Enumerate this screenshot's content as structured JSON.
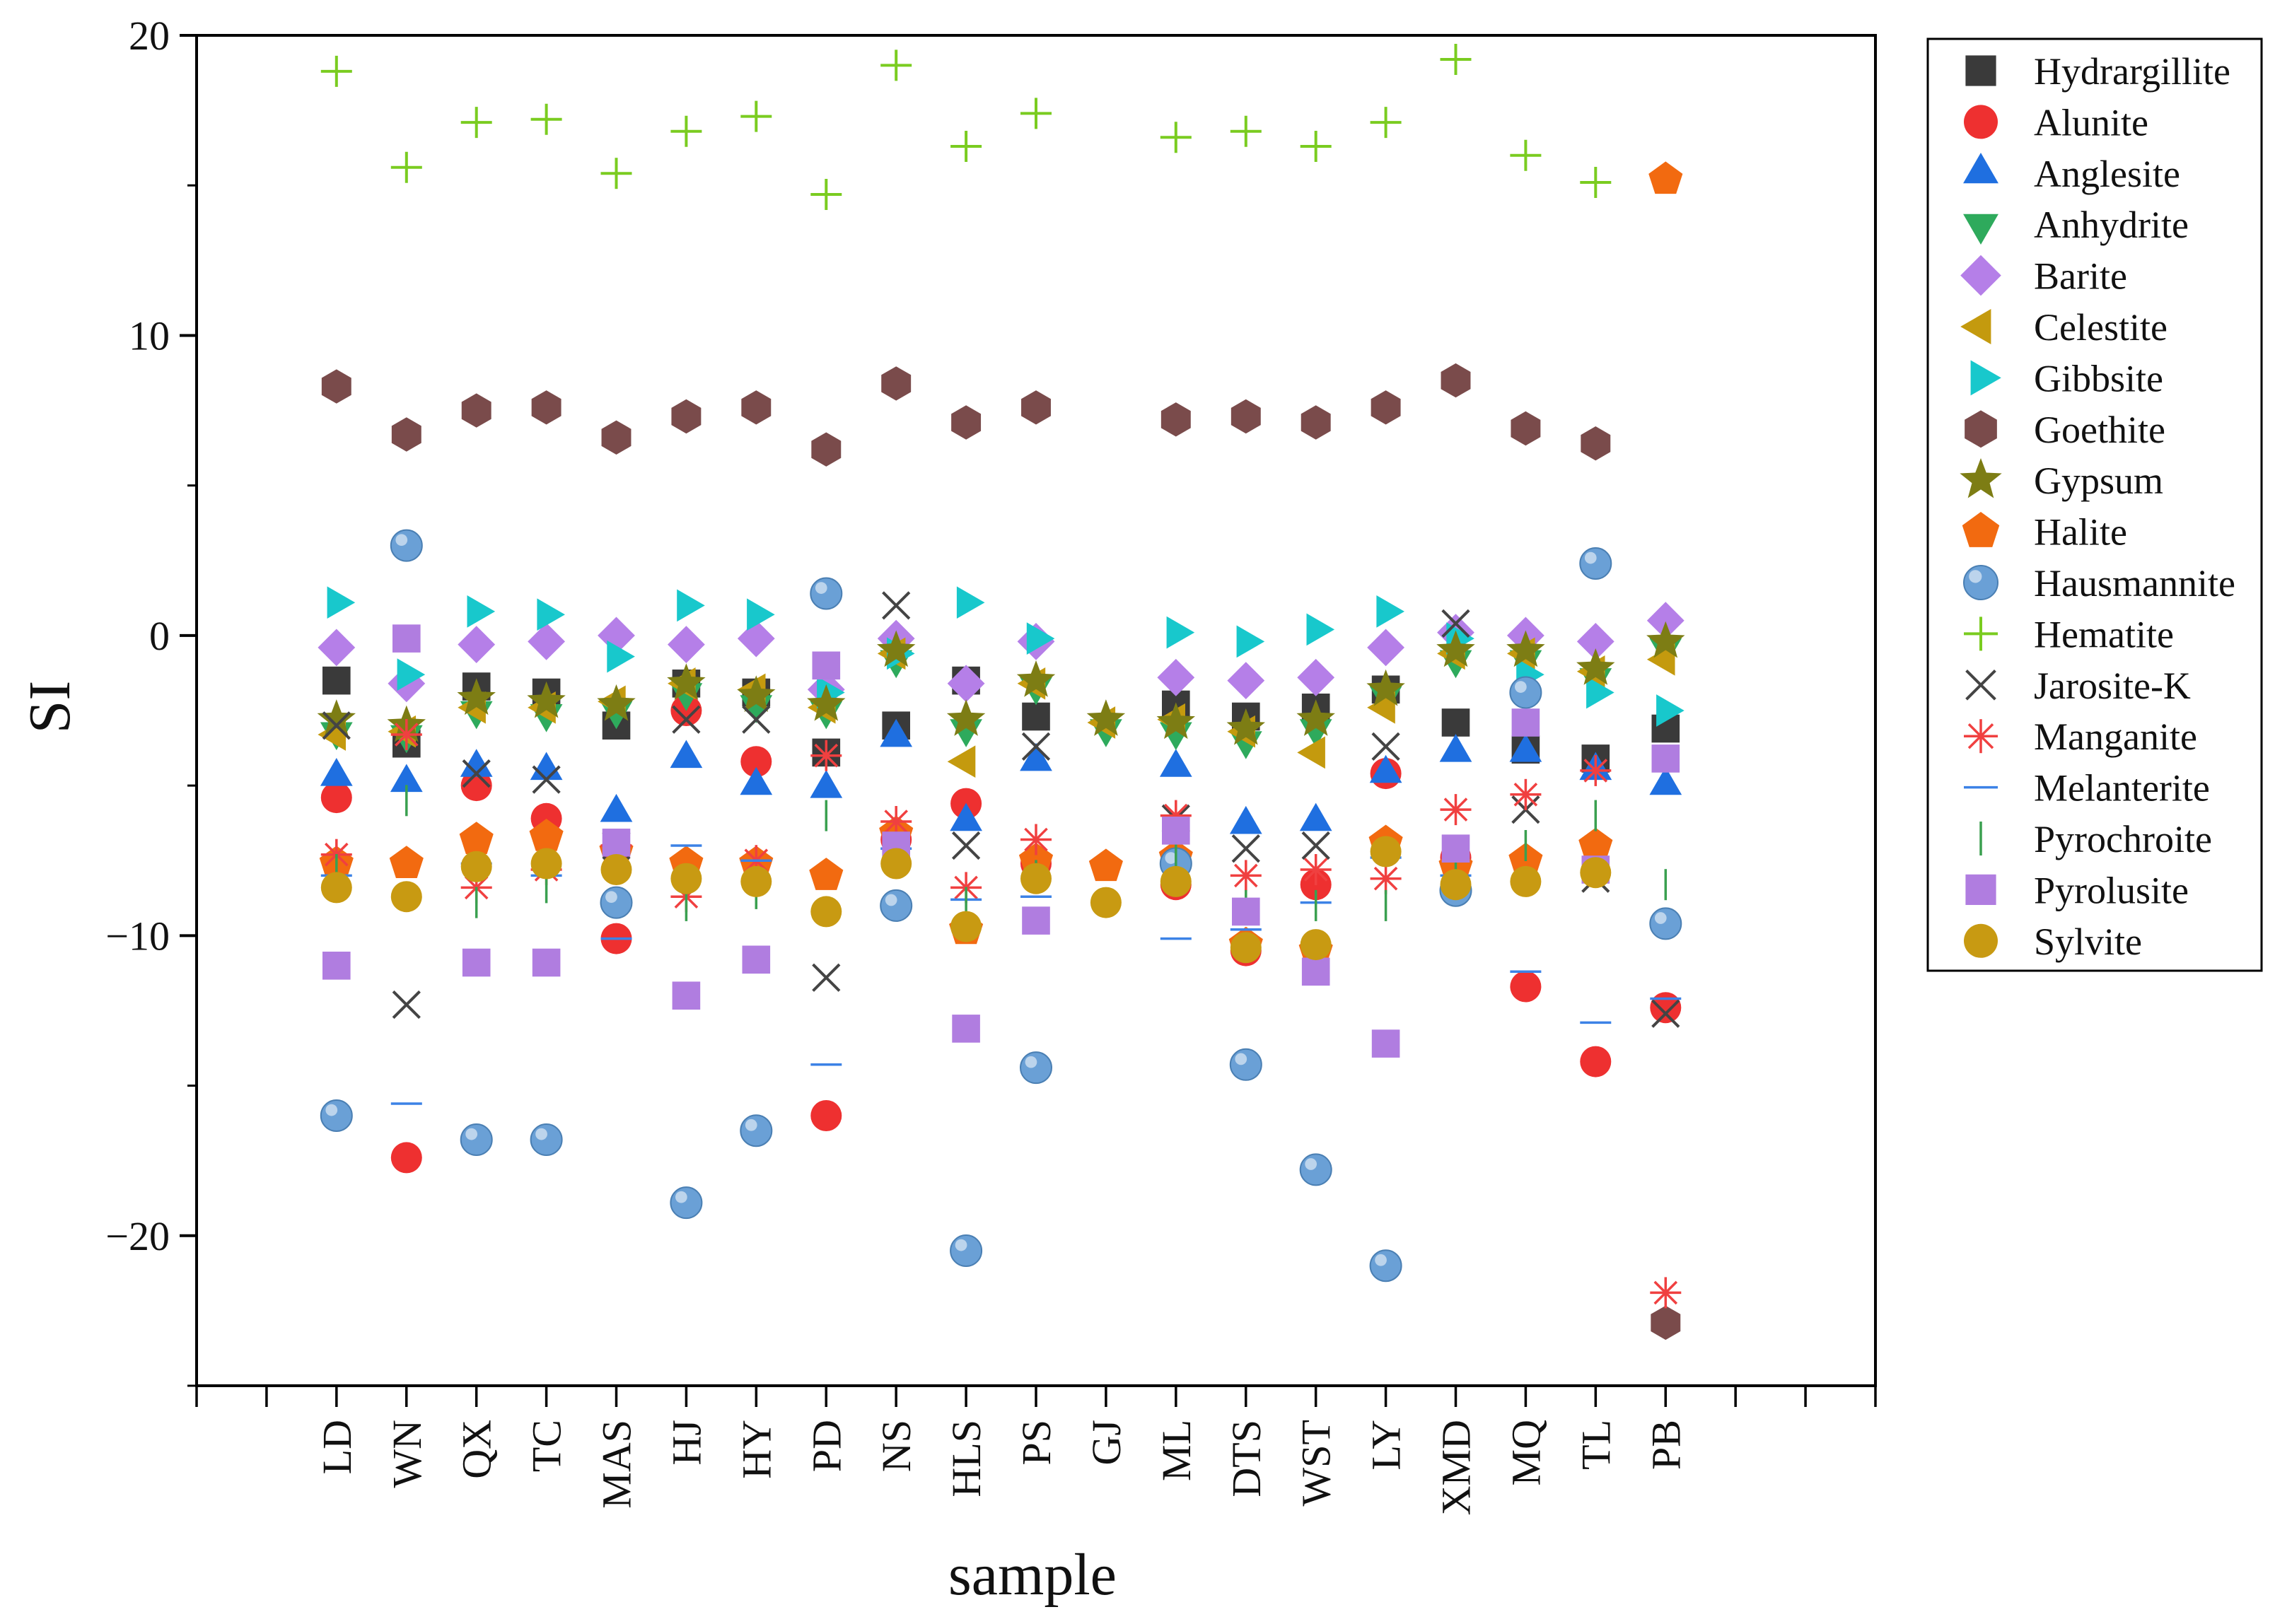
{
  "chart_data": {
    "type": "scatter",
    "title": "",
    "xlabel": "sample",
    "ylabel": "SI",
    "ylim": [
      -25,
      20
    ],
    "yticks": [
      20,
      10,
      0,
      -10,
      -20
    ],
    "ytick_labels": [
      "20",
      "10",
      "0",
      "−10",
      "−20"
    ],
    "categories": [
      "LD",
      "WN",
      "QX",
      "TC",
      "MAS",
      "HJ",
      "HY",
      "PD",
      "NS",
      "HLS",
      "PS",
      "GJ",
      "ML",
      "DTS",
      "WST",
      "LY",
      "XMD",
      "MQ",
      "TL",
      "PB"
    ],
    "legend_position": "right-outside-top",
    "series": [
      {
        "name": "Hydrargillite",
        "marker": "square",
        "color": "#3a3a3a",
        "values": [
          -1.5,
          -3.6,
          -1.7,
          -1.9,
          -3.0,
          -1.6,
          -1.9,
          -3.9,
          -3.0,
          -1.5,
          -2.7,
          null,
          -2.3,
          -2.7,
          -2.4,
          -1.8,
          -2.9,
          -3.8,
          -4.1,
          -3.1
        ]
      },
      {
        "name": "Alunite",
        "marker": "circle",
        "color": "#ee3030",
        "values": [
          -5.4,
          -17.4,
          -5.0,
          -6.1,
          -10.1,
          -2.5,
          -4.2,
          -16.0,
          -6.8,
          -5.6,
          -7.6,
          null,
          -8.3,
          -10.5,
          -8.3,
          -4.6,
          -7.4,
          -11.7,
          -14.2,
          -12.4
        ]
      },
      {
        "name": "Anglesite",
        "marker": "triangle-up",
        "color": "#1f6fe0",
        "values": [
          -4.7,
          -4.9,
          -4.4,
          -4.5,
          -5.9,
          -4.1,
          -5.0,
          -5.1,
          -3.4,
          -6.2,
          -4.2,
          null,
          -4.4,
          -6.3,
          -6.2,
          -4.6,
          -3.9,
          -3.9,
          -4.5,
          -5.0
        ]
      },
      {
        "name": "Anhydrite",
        "marker": "triangle-down",
        "color": "#2eaa5c",
        "values": [
          -3.2,
          -3.3,
          -2.5,
          -2.6,
          -2.5,
          -1.9,
          -2.3,
          -2.5,
          -0.8,
          -3.1,
          -1.7,
          -3.1,
          -3.2,
          -3.5,
          -3.1,
          -2.0,
          -0.8,
          -0.8,
          -1.4,
          -0.4
        ]
      },
      {
        "name": "Barite",
        "marker": "diamond",
        "color": "#b57fe8",
        "values": [
          -0.4,
          -1.6,
          -0.3,
          -0.2,
          0.0,
          -0.3,
          -0.1,
          -1.8,
          -0.1,
          -1.6,
          -0.2,
          null,
          -1.4,
          -1.5,
          -1.4,
          -0.4,
          0.1,
          0.0,
          -0.2,
          0.5
        ]
      },
      {
        "name": "Celestite",
        "marker": "triangle-left",
        "color": "#c49a0e",
        "values": [
          -3.3,
          -3.2,
          -2.4,
          -2.4,
          -2.2,
          -1.6,
          -1.8,
          -2.4,
          -0.6,
          -4.2,
          -1.6,
          -2.9,
          -2.8,
          -3.2,
          -3.9,
          -2.4,
          -0.6,
          -0.6,
          -1.2,
          -0.8
        ]
      },
      {
        "name": "Gibbsite",
        "marker": "triangle-right",
        "color": "#18c8cc",
        "values": [
          1.1,
          -1.3,
          0.8,
          0.7,
          -0.7,
          1.0,
          0.7,
          -1.9,
          -0.6,
          1.1,
          -0.1,
          null,
          0.1,
          -0.2,
          0.2,
          0.8,
          -0.1,
          -1.3,
          -1.9,
          -2.5
        ]
      },
      {
        "name": "Goethite",
        "marker": "hexagon",
        "color": "#7a4b4b",
        "values": [
          8.3,
          6.7,
          7.5,
          7.6,
          6.6,
          7.3,
          7.6,
          6.2,
          8.4,
          7.1,
          7.6,
          null,
          7.2,
          7.3,
          7.1,
          7.6,
          8.5,
          6.9,
          6.4,
          -22.9
        ]
      },
      {
        "name": "Gypsum",
        "marker": "star",
        "color": "#7d7d14",
        "values": [
          -2.8,
          -3.0,
          -2.1,
          -2.2,
          -2.3,
          -1.6,
          -2.0,
          -2.3,
          -0.5,
          -2.8,
          -1.5,
          -2.8,
          -2.9,
          -3.1,
          -2.8,
          -1.8,
          -0.5,
          -0.5,
          -1.1,
          -0.2
        ]
      },
      {
        "name": "Halite",
        "marker": "pentagon",
        "color": "#f26a10",
        "values": [
          -7.6,
          -7.6,
          -6.8,
          -6.7,
          -7.2,
          -7.6,
          -7.6,
          -8.0,
          -6.6,
          -9.8,
          -7.5,
          -7.7,
          -7.4,
          -10.3,
          -10.5,
          -6.9,
          -7.7,
          -7.5,
          -7.0,
          15.2
        ]
      },
      {
        "name": "Hausmannite",
        "marker": "sphere",
        "color": "#6aa0d6",
        "values": [
          -16.0,
          3.0,
          -16.8,
          -16.8,
          -8.9,
          -18.9,
          -16.5,
          1.4,
          -9.0,
          -20.5,
          -14.4,
          null,
          -7.6,
          -14.3,
          -17.8,
          -21.0,
          -8.5,
          -1.9,
          2.4,
          -9.6
        ]
      },
      {
        "name": "Hematite",
        "marker": "plus",
        "color": "#7acc20",
        "values": [
          18.8,
          15.6,
          17.1,
          17.2,
          15.4,
          16.8,
          17.3,
          14.7,
          19.0,
          16.3,
          17.4,
          null,
          16.6,
          16.8,
          16.3,
          17.1,
          19.2,
          16.0,
          15.1,
          null
        ]
      },
      {
        "name": "Jarosite-K",
        "marker": "x",
        "color": "#444444",
        "values": [
          -3.0,
          -12.3,
          -4.6,
          -4.8,
          -7.0,
          -2.8,
          -2.8,
          -11.4,
          1.0,
          -7.0,
          -3.7,
          null,
          -6.1,
          -7.1,
          -7.0,
          -3.7,
          0.4,
          -5.8,
          -8.1,
          -12.6
        ]
      },
      {
        "name": "Manganite",
        "marker": "asterisk",
        "color": "#f04040",
        "values": [
          -7.3,
          -3.3,
          -8.4,
          -7.8,
          -7.0,
          -8.7,
          -7.5,
          -4.0,
          -6.2,
          -8.4,
          -6.8,
          null,
          -6.0,
          -8.0,
          -7.8,
          -8.1,
          -5.8,
          -5.3,
          -4.5,
          -21.9
        ]
      },
      {
        "name": "Melanterite",
        "marker": "hline",
        "color": "#3c82e6",
        "values": [
          -8.0,
          -15.6,
          -7.6,
          -8.0,
          -10.1,
          -7.0,
          -7.5,
          -14.3,
          -7.1,
          -8.8,
          -8.7,
          null,
          -10.1,
          -9.8,
          -8.9,
          -7.4,
          -8.0,
          -11.2,
          -12.9,
          -12.1
        ]
      },
      {
        "name": "Pyrochroite",
        "marker": "vline",
        "color": "#3aa050",
        "values": [
          -7.8,
          -5.5,
          -8.9,
          -8.4,
          -7.5,
          -9.0,
          -8.6,
          -6.0,
          -7.5,
          -8.9,
          -8.0,
          null,
          -7.2,
          -9.0,
          -9.0,
          -9.0,
          -7.8,
          -7.0,
          -6.0,
          -8.3
        ]
      },
      {
        "name": "Pyrolusite",
        "marker": "square",
        "color": "#b07de0",
        "values": [
          -11.0,
          -0.1,
          -10.9,
          -10.9,
          -6.9,
          -12.0,
          -10.8,
          -1.0,
          -7.0,
          -13.1,
          -9.5,
          null,
          -6.5,
          -9.2,
          -11.2,
          -13.6,
          -7.1,
          -2.9,
          -7.8,
          -4.1
        ]
      },
      {
        "name": "Sylvite",
        "marker": "circle",
        "color": "#c89a12",
        "values": [
          -8.4,
          -8.7,
          -7.7,
          -7.6,
          -7.8,
          -8.1,
          -8.2,
          -9.2,
          -7.6,
          -9.7,
          -8.1,
          -8.9,
          -8.2,
          -10.4,
          -10.3,
          -7.2,
          -8.3,
          -8.2,
          -7.9,
          null
        ]
      }
    ]
  }
}
